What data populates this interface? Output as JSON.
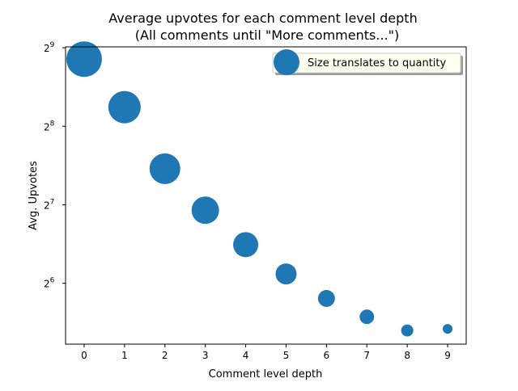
{
  "chart_data": {
    "type": "scatter",
    "title": "Average upvotes for each comment level depth",
    "subtitle": "(All comments until \"More comments...\")",
    "xlabel": "Comment level depth",
    "ylabel": "Avg. Upvotes",
    "yscale": "log2",
    "x": [
      0,
      1,
      2,
      3,
      4,
      5,
      6,
      7,
      8,
      9
    ],
    "y": [
      463,
      303,
      176,
      122,
      90,
      69.5,
      56,
      47.6,
      42.2,
      42.8
    ],
    "marker_size": [
      484,
      400,
      361,
      289,
      240,
      169,
      110,
      81,
      56,
      36
    ],
    "xlim": [
      -0.46,
      9.46
    ],
    "ylim": [
      37.4,
      516
    ],
    "xticks": [
      0,
      1,
      2,
      3,
      4,
      5,
      6,
      7,
      8,
      9
    ],
    "yticks": {
      "base": "2",
      "exponents": [
        6,
        7,
        8,
        9
      ]
    },
    "legend": {
      "label": "Size translates to quantity",
      "placement": "top-right"
    },
    "grid": false,
    "color": "#1f77b4"
  }
}
